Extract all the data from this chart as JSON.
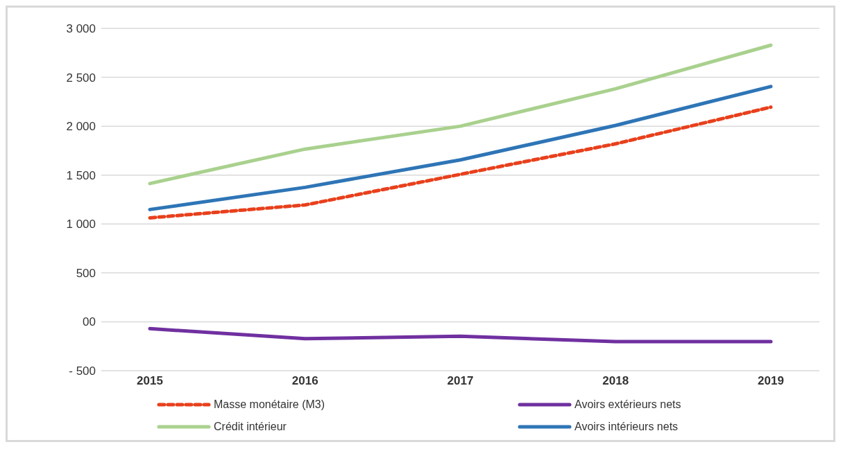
{
  "chart_data": {
    "type": "line",
    "categories": [
      "2015",
      "2016",
      "2017",
      "2018",
      "2019"
    ],
    "series": [
      {
        "name": "Masse monétaire (M3)",
        "color": "#e8401c",
        "line_style": "dashed",
        "values": [
          1063,
          1195,
          1508,
          1820,
          2195
        ]
      },
      {
        "name": "Avoirs extérieurs nets",
        "color": "#7030a0",
        "values": [
          -70,
          -172,
          -148,
          -203,
          -203
        ]
      },
      {
        "name": "Crédit intérieur",
        "color": "#a9d18e",
        "values": [
          1414,
          1766,
          2000,
          2383,
          2828
        ]
      },
      {
        "name": "Avoirs intérieurs nets",
        "color": "#2e75b6",
        "values": [
          1148,
          1375,
          1656,
          2008,
          2406
        ]
      }
    ],
    "ylim": [
      -500,
      3000
    ],
    "yticks": [
      {
        "value": -500,
        "label": "- 500"
      },
      {
        "value": 0,
        "label": "00"
      },
      {
        "value": 500,
        "label": "500"
      },
      {
        "value": 1000,
        "label": "1 000"
      },
      {
        "value": 1500,
        "label": "1 500"
      },
      {
        "value": 2000,
        "label": "2 000"
      },
      {
        "value": 2500,
        "label": "2 500"
      },
      {
        "value": 3000,
        "label": "3 000"
      }
    ],
    "grid": "y",
    "legend": "bottom",
    "marker": "none",
    "line_style": "solid"
  }
}
